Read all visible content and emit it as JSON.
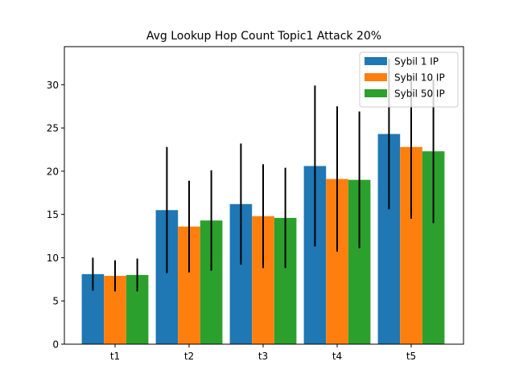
{
  "chart_data": {
    "type": "bar",
    "title": "Avg Lookup Hop Count Topic1 Attack 20%",
    "xlabel": "",
    "ylabel": "",
    "categories": [
      "t1",
      "t2",
      "t3",
      "t4",
      "t5"
    ],
    "ylim": [
      0,
      34.4
    ],
    "yticks": [
      0,
      5,
      10,
      15,
      20,
      25,
      30
    ],
    "grid": false,
    "legend_position": "top-right",
    "series": [
      {
        "name": "Sybil 1 IP",
        "color": "#1f77b4",
        "values": [
          8.1,
          15.5,
          16.2,
          20.6,
          24.3
        ],
        "error": [
          1.9,
          7.3,
          7.0,
          9.3,
          8.7
        ]
      },
      {
        "name": "Sybil 10 IP",
        "color": "#ff7f0e",
        "values": [
          7.9,
          13.6,
          14.8,
          19.1,
          22.8
        ],
        "error": [
          1.8,
          5.3,
          6.0,
          8.4,
          8.3
        ]
      },
      {
        "name": "Sybil 50 IP",
        "color": "#2ca02c",
        "values": [
          8.0,
          14.3,
          14.6,
          19.0,
          22.3
        ],
        "error": [
          1.9,
          5.8,
          5.8,
          7.9,
          8.3
        ]
      }
    ]
  }
}
